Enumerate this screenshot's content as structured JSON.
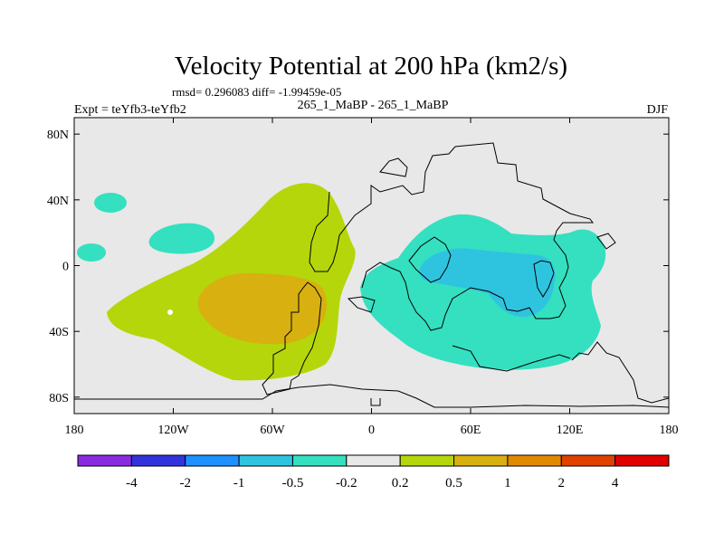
{
  "chart_data": {
    "type": "heatmap",
    "title": "Velocity Potential at 200 hPa (km2/s)",
    "stats_line": "rmsd= 0.296083 diff= -1.99459e-05",
    "experiment_label": "Expt = teYfb3-teYfb2",
    "case_label": "265_1_MaBP - 265_1_MaBP",
    "season": "DJF",
    "xlim": [
      -180,
      180
    ],
    "ylim": [
      -90,
      90
    ],
    "x_ticks": [
      {
        "value": -180,
        "label": "180"
      },
      {
        "value": -120,
        "label": "120W"
      },
      {
        "value": -60,
        "label": "60W"
      },
      {
        "value": 0,
        "label": "0"
      },
      {
        "value": 60,
        "label": "60E"
      },
      {
        "value": 120,
        "label": "120E"
      },
      {
        "value": 180,
        "label": "180"
      }
    ],
    "y_ticks": [
      {
        "value": 80,
        "label": "80N"
      },
      {
        "value": 40,
        "label": "40N"
      },
      {
        "value": 0,
        "label": "0"
      },
      {
        "value": -40,
        "label": "40S"
      },
      {
        "value": -80,
        "label": "80S"
      }
    ],
    "colorbar": {
      "colors": [
        "#8a2be2",
        "#3333dd",
        "#1e90ff",
        "#2ec4e0",
        "#34e0c0",
        "#e8e8e8",
        "#b5d60a",
        "#d8b010",
        "#e08a00",
        "#e04000",
        "#e00000"
      ],
      "labels": [
        "-4",
        "-2",
        "-1",
        "-0.5",
        "-0.2",
        "0.2",
        "0.5",
        "1",
        "2",
        "4"
      ]
    },
    "fields": [
      {
        "name": "positive-center-atlantic",
        "level": "1",
        "color": "#d8b010",
        "lon": -45,
        "lat": -20,
        "note": "core exceeds 0.5 km2/s"
      },
      {
        "name": "positive-lobe-pacific-atlantic",
        "level": "0.5",
        "color": "#b5d60a",
        "lon": -50,
        "lat": -15
      },
      {
        "name": "negative-center-indian-ocean",
        "level": "-0.5",
        "color": "#2ec4e0",
        "lon": 85,
        "lat": -15
      },
      {
        "name": "negative-lobe-africa-pacific",
        "level": "-0.2",
        "color": "#34e0c0",
        "lon": 75,
        "lat": -10
      },
      {
        "name": "negative-patch-north-pacific",
        "level": "-0.2",
        "color": "#34e0c0",
        "lon": -140,
        "lat": 15
      },
      {
        "name": "negative-patch-far-north-pacific",
        "level": "-0.2",
        "color": "#34e0c0",
        "lon": -163,
        "lat": 38
      },
      {
        "name": "negative-patch-dateline",
        "level": "-0.2",
        "color": "#34e0c0",
        "lon": -176,
        "lat": 10
      }
    ],
    "background_color": "#e8e8e8"
  }
}
